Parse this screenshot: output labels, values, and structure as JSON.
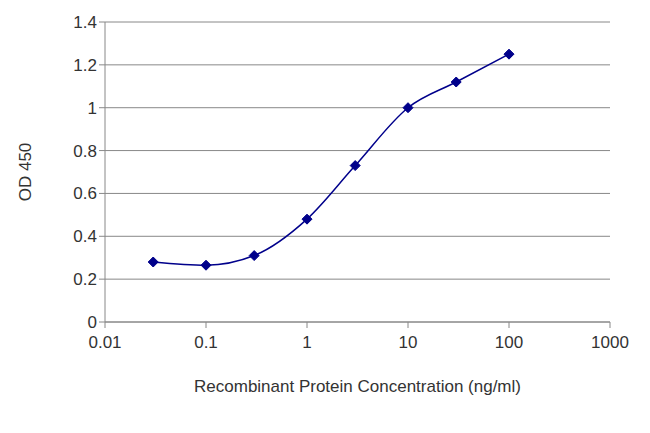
{
  "chart_data": {
    "type": "line",
    "x_label": "Recombinant Protein Concentration (ng/ml)",
    "y_label": "OD 450",
    "x": [
      0.03,
      0.1,
      0.3,
      1,
      3,
      10,
      30,
      100
    ],
    "values": [
      0.28,
      0.265,
      0.31,
      0.48,
      0.73,
      1.0,
      1.12,
      1.25
    ],
    "color": "#00008b",
    "marker": "diamond",
    "line_style": "solid",
    "xlim": [
      0.01,
      1000
    ],
    "ylim": [
      0,
      1.4
    ],
    "xticks": [
      0.01,
      0.1,
      1,
      10,
      100,
      1000
    ],
    "yticks": [
      0,
      0.2,
      0.4,
      0.6,
      0.8,
      1,
      1.2,
      1.4
    ],
    "log": "x",
    "grid": true
  }
}
